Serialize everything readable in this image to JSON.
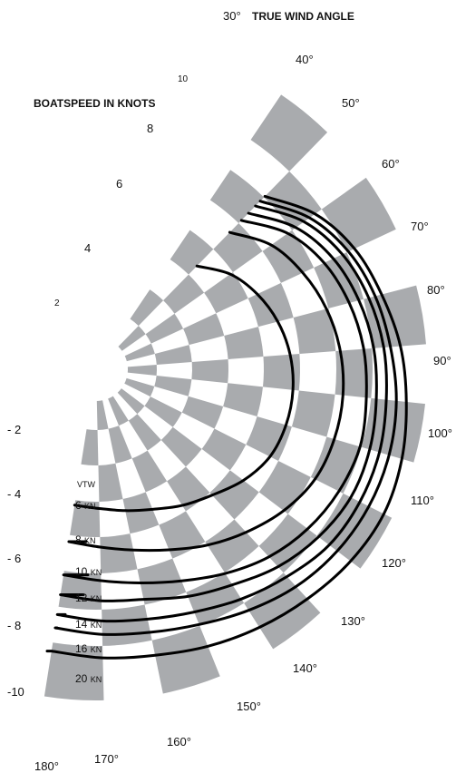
{
  "chart_data": {
    "type": "polar",
    "title": "TRUE WIND ANGLE",
    "radial_axis_label": "BOATSPEED IN KNOTS",
    "angle_range_deg": [
      30,
      180
    ],
    "angle_ticks": [
      "30°",
      "40°",
      "50°",
      "60°",
      "70°",
      "80°",
      "90°",
      "100°",
      "110°",
      "120°",
      "130°",
      "140°",
      "150°",
      "160°",
      "170°",
      "180°"
    ],
    "radial_ticks_upper": [
      "2",
      "4",
      "6",
      "8",
      "10"
    ],
    "radial_ticks_lower": [
      "- 2",
      "- 4",
      "- 6",
      "- 8",
      "-10"
    ],
    "series_header": "VTW",
    "series": [
      {
        "name": "6 KN",
        "angles": [
          40,
          50,
          60,
          70,
          80,
          90,
          100,
          110,
          120,
          130,
          140,
          150,
          160,
          170,
          180
        ],
        "speeds": [
          4.3,
          4.9,
          5.3,
          5.6,
          5.8,
          5.9,
          5.9,
          5.8,
          5.5,
          5.1,
          4.8,
          4.5,
          4.3,
          4.15,
          4.1
        ]
      },
      {
        "name": "8 KN",
        "angles": [
          40,
          50,
          60,
          70,
          80,
          90,
          100,
          110,
          120,
          130,
          140,
          150,
          160,
          170,
          180
        ],
        "speeds": [
          5.7,
          6.4,
          6.8,
          7.1,
          7.3,
          7.4,
          7.4,
          7.3,
          7.0,
          6.6,
          6.2,
          5.8,
          5.5,
          5.3,
          5.2
        ]
      },
      {
        "name": "10 KN",
        "angles": [
          40,
          50,
          60,
          70,
          80,
          90,
          100,
          110,
          120,
          130,
          140,
          150,
          160,
          170,
          180
        ],
        "speeds": [
          6.2,
          7.0,
          7.5,
          7.8,
          8.0,
          8.1,
          8.2,
          8.1,
          7.9,
          7.6,
          7.2,
          6.8,
          6.5,
          6.3,
          6.2
        ]
      },
      {
        "name": "12 KN",
        "angles": [
          40,
          50,
          60,
          70,
          80,
          90,
          100,
          110,
          120,
          130,
          140,
          150,
          160,
          170,
          180
        ],
        "speeds": [
          6.5,
          7.3,
          7.8,
          8.1,
          8.3,
          8.4,
          8.5,
          8.5,
          8.3,
          8.0,
          7.6,
          7.3,
          7.0,
          6.9,
          6.8
        ]
      },
      {
        "name": "14 KN",
        "angles": [
          40,
          50,
          60,
          70,
          80,
          90,
          100,
          110,
          120,
          130,
          140,
          150,
          160,
          170,
          180
        ],
        "speeds": [
          6.8,
          7.6,
          8.1,
          8.4,
          8.6,
          8.7,
          8.8,
          8.8,
          8.7,
          8.4,
          8.1,
          7.8,
          7.6,
          7.5,
          7.4
        ]
      },
      {
        "name": "16 KN",
        "angles": [
          40,
          50,
          60,
          70,
          80,
          90,
          100,
          110,
          120,
          130,
          140,
          150,
          160,
          170,
          180
        ],
        "speeds": [
          7.0,
          7.8,
          8.3,
          8.6,
          8.8,
          9.0,
          9.1,
          9.1,
          9.0,
          8.8,
          8.5,
          8.2,
          8.0,
          7.9,
          7.8
        ]
      },
      {
        "name": "20 KN",
        "angles": [
          40,
          50,
          60,
          70,
          80,
          90,
          100,
          110,
          120,
          130,
          140,
          150,
          160,
          170,
          180
        ],
        "speeds": [
          7.2,
          8.0,
          8.5,
          8.8,
          9.1,
          9.3,
          9.5,
          9.6,
          9.5,
          9.3,
          9.1,
          8.9,
          8.7,
          8.6,
          8.5
        ]
      }
    ],
    "colors": {
      "checker": "#a9abae",
      "line": "#000000",
      "text": "#111111"
    }
  }
}
